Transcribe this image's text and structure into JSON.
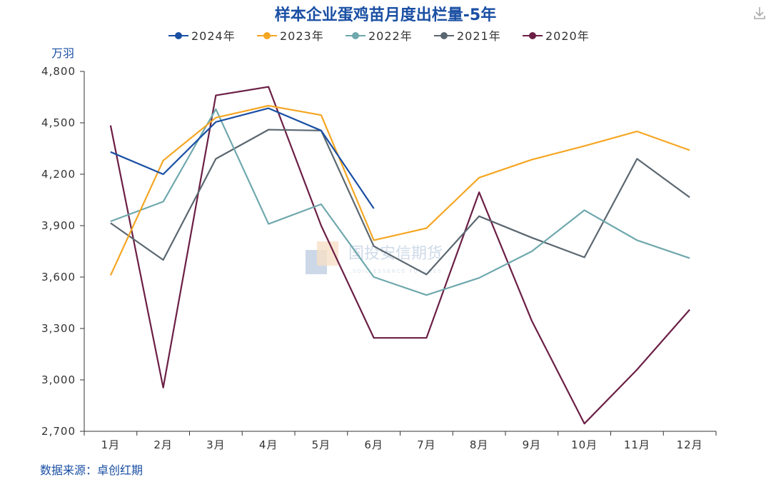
{
  "download_icon": "download-icon",
  "watermark": {
    "name": "国投安信期货",
    "subtitle": "SDIC ESSENCE FUTURES"
  },
  "source": "数据来源：卓创红期",
  "chart_data": {
    "type": "line",
    "title": "样本企业蛋鸡苗月度出栏量-5年",
    "ylabel": "万羽",
    "xlabel": "",
    "ylim": [
      2700,
      4800
    ],
    "yticks": [
      2700,
      3000,
      3300,
      3600,
      3900,
      4200,
      4500,
      4800
    ],
    "ytick_labels": [
      "2,700",
      "3,000",
      "3,300",
      "3,600",
      "3,900",
      "4,200",
      "4,500",
      "4,800"
    ],
    "categories": [
      "1月",
      "2月",
      "3月",
      "4月",
      "5月",
      "6月",
      "7月",
      "8月",
      "9月",
      "10月",
      "11月",
      "12月"
    ],
    "series": [
      {
        "name": "2024年",
        "color": "#1a4fa3",
        "values": [
          4330,
          4200,
          4505,
          4585,
          4455,
          4000,
          null,
          null,
          null,
          null,
          null,
          null
        ]
      },
      {
        "name": "2023年",
        "color": "#f5a623",
        "values": [
          3610,
          4280,
          4530,
          4600,
          4545,
          3815,
          3885,
          4180,
          4285,
          4365,
          4450,
          4340
        ]
      },
      {
        "name": "2022年",
        "color": "#6fa8ad",
        "values": [
          3925,
          4040,
          4580,
          3910,
          4025,
          3600,
          3495,
          3595,
          3750,
          3990,
          3815,
          3710
        ]
      },
      {
        "name": "2021年",
        "color": "#5b6770",
        "values": [
          3915,
          3700,
          4290,
          4460,
          4455,
          3780,
          3615,
          3955,
          3830,
          3715,
          4290,
          4065
        ]
      },
      {
        "name": "2020年",
        "color": "#6b1f45",
        "values": [
          4485,
          2955,
          4660,
          4710,
          3900,
          3245,
          3245,
          4095,
          3345,
          2745,
          3060,
          3410
        ]
      }
    ],
    "legend_position": "top-center",
    "grid": false
  }
}
